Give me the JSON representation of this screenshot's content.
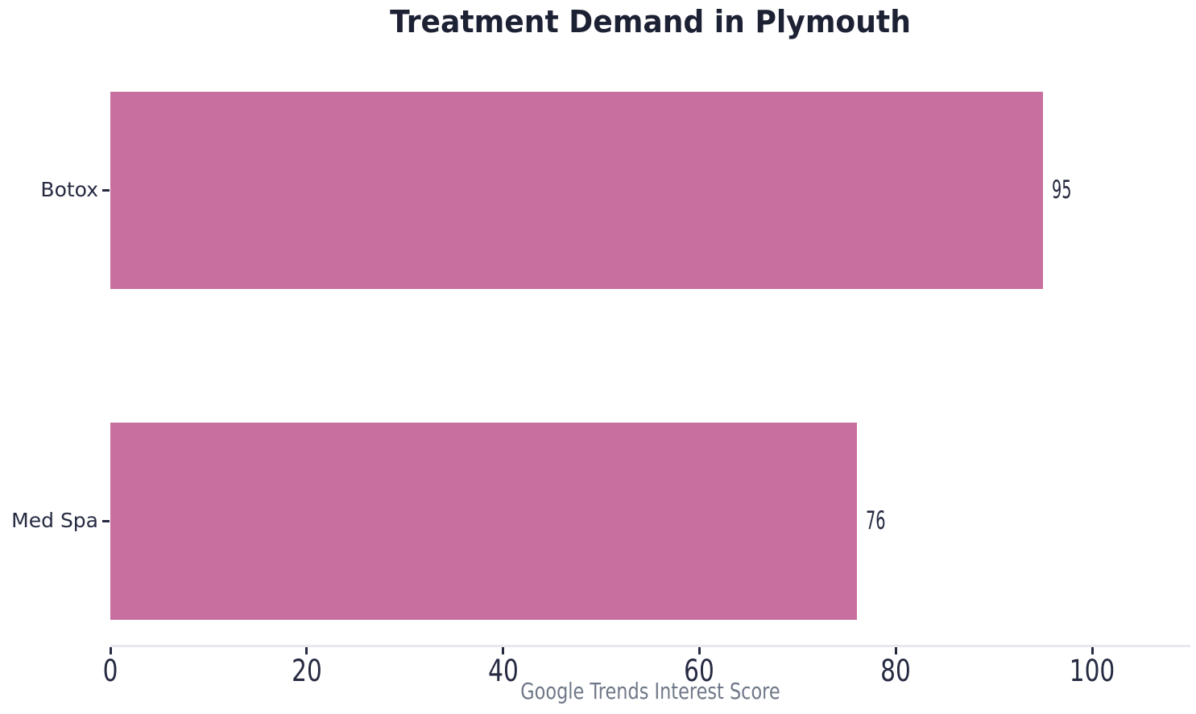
{
  "chart_data": {
    "type": "bar",
    "orientation": "horizontal",
    "title": "Treatment Demand in Plymouth",
    "categories": [
      "Botox",
      "Med Spa"
    ],
    "values": [
      95,
      76
    ],
    "xlabel": "Google Trends Interest Score",
    "ylabel": "",
    "xlim": [
      0,
      110
    ],
    "xticks": [
      0,
      20,
      40,
      60,
      80,
      100
    ],
    "grid": false,
    "legend": "none",
    "bar_color": "#c76f9e",
    "colors": {
      "title": "#1d2134",
      "tick_text": "#252a41",
      "axis_line": "#e8e8ee",
      "xlabel_text": "#6f7888",
      "background": "#ffffff"
    }
  }
}
